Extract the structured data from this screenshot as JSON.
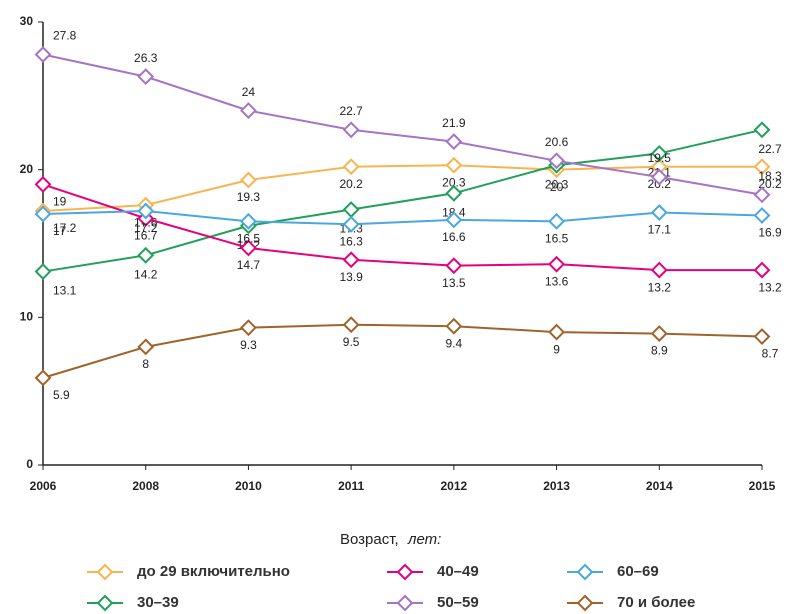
{
  "chart_data": {
    "type": "line",
    "categories": [
      "2006",
      "2008",
      "2010",
      "2011",
      "2012",
      "2013",
      "2014",
      "2015"
    ],
    "ylim": [
      0,
      30
    ],
    "yticks": [
      0,
      10,
      20,
      30
    ],
    "legend_title": "Возраст,",
    "legend_title_unit": "лет:",
    "series": [
      {
        "name": "до 29 включительно",
        "color": "#f7b551",
        "values": [
          17.2,
          17.6,
          19.3,
          20.2,
          20.3,
          20.0,
          20.2,
          20.2
        ]
      },
      {
        "name": "30–39",
        "color": "#20a058",
        "values": [
          13.1,
          14.2,
          16.2,
          17.3,
          18.4,
          20.3,
          21.1,
          22.7
        ]
      },
      {
        "name": "40–49",
        "color": "#e5007d",
        "values": [
          19.0,
          16.7,
          14.7,
          13.9,
          13.5,
          13.6,
          13.2,
          13.2
        ]
      },
      {
        "name": "50–59",
        "color": "#a574c4",
        "values": [
          27.8,
          26.3,
          24.0,
          22.7,
          21.9,
          20.6,
          19.5,
          18.3
        ]
      },
      {
        "name": "60–69",
        "color": "#4aa7df",
        "values": [
          17.0,
          17.2,
          16.5,
          16.3,
          16.6,
          16.5,
          17.1,
          16.9
        ]
      },
      {
        "name": "70 и более",
        "color": "#a0632c",
        "values": [
          5.9,
          8.0,
          9.3,
          9.5,
          9.4,
          9.0,
          8.9,
          8.7
        ]
      }
    ]
  }
}
